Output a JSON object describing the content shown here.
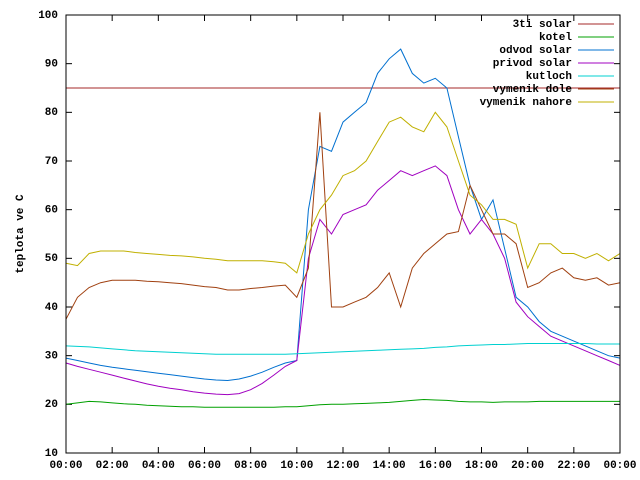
{
  "chart_data": {
    "type": "line",
    "y_label": "teplota ve C",
    "x": [
      0,
      0.5,
      1,
      1.5,
      2,
      2.5,
      3,
      3.5,
      4,
      4.5,
      5,
      5.5,
      6,
      6.5,
      7,
      7.5,
      8,
      8.5,
      9,
      9.5,
      10,
      10.5,
      11,
      11.5,
      12,
      12.5,
      13,
      13.5,
      14,
      14.5,
      15,
      15.5,
      16,
      16.5,
      17,
      17.5,
      18,
      18.5,
      19,
      19.5,
      20,
      20.5,
      21,
      21.5,
      22,
      22.5,
      23,
      23.5,
      24
    ],
    "xlim": [
      0,
      24
    ],
    "xticks": [
      {
        "value": 0,
        "label": "00:00"
      },
      {
        "value": 2,
        "label": "02:00"
      },
      {
        "value": 4,
        "label": "04:00"
      },
      {
        "value": 6,
        "label": "06:00"
      },
      {
        "value": 8,
        "label": "08:00"
      },
      {
        "value": 10,
        "label": "10:00"
      },
      {
        "value": 12,
        "label": "12:00"
      },
      {
        "value": 14,
        "label": "14:00"
      },
      {
        "value": 16,
        "label": "16:00"
      },
      {
        "value": 18,
        "label": "18:00"
      },
      {
        "value": 20,
        "label": "20:00"
      },
      {
        "value": 22,
        "label": "22:00"
      },
      {
        "value": 24,
        "label": "00:00"
      }
    ],
    "ylim": [
      10,
      100
    ],
    "yticks": [
      10,
      20,
      30,
      40,
      50,
      60,
      70,
      80,
      90,
      100
    ],
    "legend": "top-right",
    "series": [
      {
        "name": "3ti solar",
        "color": "#a52a2a",
        "values": [
          85,
          85,
          85,
          85,
          85,
          85,
          85,
          85,
          85,
          85,
          85,
          85,
          85,
          85,
          85,
          85,
          85,
          85,
          85,
          85,
          85,
          85,
          85,
          85,
          85,
          85,
          85,
          85,
          85,
          85,
          85,
          85,
          85,
          85,
          85,
          85,
          85,
          85,
          85,
          85,
          85,
          85,
          85,
          85,
          85,
          85,
          85,
          85,
          85
        ]
      },
      {
        "name": "kotel",
        "color": "#00a000",
        "values": [
          20,
          20.3,
          20.6,
          20.5,
          20.3,
          20.1,
          20,
          19.8,
          19.7,
          19.6,
          19.5,
          19.5,
          19.4,
          19.4,
          19.4,
          19.4,
          19.4,
          19.4,
          19.4,
          19.5,
          19.5,
          19.7,
          19.9,
          20,
          20,
          20.1,
          20.2,
          20.3,
          20.4,
          20.6,
          20.8,
          21,
          20.9,
          20.8,
          20.6,
          20.5,
          20.5,
          20.4,
          20.5,
          20.5,
          20.5,
          20.6,
          20.6,
          20.6,
          20.6,
          20.6,
          20.6,
          20.6,
          20.6
        ]
      },
      {
        "name": "odvod solar",
        "color": "#0070d0",
        "values": [
          29.5,
          29,
          28.5,
          28,
          27.6,
          27.3,
          27,
          26.7,
          26.4,
          26.1,
          25.8,
          25.5,
          25.2,
          25,
          24.9,
          25.2,
          25.8,
          26.6,
          27.6,
          28.5,
          29,
          60,
          73,
          72,
          78,
          80,
          82,
          88,
          91,
          93,
          88,
          86,
          87,
          85,
          75,
          65,
          58,
          62,
          52,
          42,
          40,
          37,
          35,
          34,
          33,
          32,
          31,
          30,
          29.5
        ]
      },
      {
        "name": "privod solar",
        "color": "#a000c0",
        "values": [
          28.5,
          27.8,
          27.2,
          26.6,
          26,
          25.4,
          24.8,
          24.2,
          23.7,
          23.3,
          23,
          22.6,
          22.3,
          22.1,
          22,
          22.2,
          23,
          24.3,
          26,
          27.8,
          29,
          50,
          58,
          55,
          59,
          60,
          61,
          64,
          66,
          68,
          67,
          68,
          69,
          67,
          60,
          55,
          58,
          55,
          50,
          41,
          38,
          36,
          34,
          33,
          32,
          31,
          30,
          29,
          28
        ]
      },
      {
        "name": "kutloch",
        "color": "#00d0d0",
        "values": [
          32,
          31.9,
          31.8,
          31.6,
          31.4,
          31.2,
          31,
          30.9,
          30.8,
          30.7,
          30.6,
          30.5,
          30.4,
          30.3,
          30.3,
          30.3,
          30.3,
          30.3,
          30.3,
          30.3,
          30.4,
          30.5,
          30.6,
          30.7,
          30.8,
          30.9,
          31,
          31.1,
          31.2,
          31.3,
          31.4,
          31.5,
          31.7,
          31.8,
          32,
          32.1,
          32.2,
          32.3,
          32.3,
          32.4,
          32.5,
          32.5,
          32.5,
          32.5,
          32.5,
          32.5,
          32.4,
          32.4,
          32.4
        ]
      },
      {
        "name": "vymenik dole",
        "color": "#a04010",
        "values": [
          37.5,
          42,
          44,
          45,
          45.5,
          45.5,
          45.5,
          45.3,
          45.2,
          45,
          44.8,
          44.5,
          44.2,
          44,
          43.5,
          43.5,
          43.8,
          44,
          44.3,
          44.5,
          42,
          48,
          80,
          40,
          40,
          41,
          42,
          44,
          47,
          40,
          48,
          51,
          53,
          55,
          55.5,
          65,
          60,
          55,
          55,
          53,
          44,
          45,
          47,
          48,
          46,
          45.5,
          46,
          44.5,
          45
        ]
      },
      {
        "name": "vymenik nahore",
        "color": "#c0b000",
        "values": [
          49,
          48.5,
          51,
          51.5,
          51.5,
          51.5,
          51.2,
          51,
          50.8,
          50.6,
          50.5,
          50.3,
          50,
          49.8,
          49.5,
          49.5,
          49.5,
          49.5,
          49.3,
          49,
          47,
          55,
          60,
          63,
          67,
          68,
          70,
          74,
          78,
          79,
          77,
          76,
          80,
          77,
          70,
          63,
          61,
          58,
          58,
          57,
          48,
          53,
          53,
          51,
          51,
          50,
          51,
          49.5,
          51
        ]
      }
    ]
  }
}
